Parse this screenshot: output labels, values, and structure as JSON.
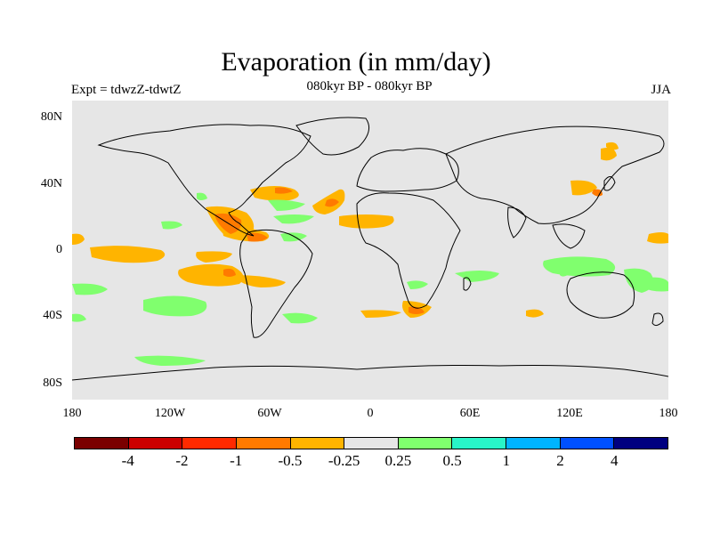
{
  "title": "Evaporation (in mm/day)",
  "subtitle_left": "Expt = tdwzZ-tdwtZ",
  "subtitle_center": "080kyr BP - 080kyr BP",
  "subtitle_right": "JJA",
  "lat_labels": [
    "80N",
    "40N",
    "0",
    "40S",
    "80S"
  ],
  "lon_labels": [
    "180",
    "120W",
    "60W",
    "0",
    "60E",
    "120E",
    "180"
  ],
  "colorbar": {
    "colors": [
      "#7a0000",
      "#cc0000",
      "#ff2a00",
      "#ff7a00",
      "#ffb400",
      "#e6e6e6",
      "#80ff6e",
      "#28f5c8",
      "#00b4ff",
      "#0050ff",
      "#000080"
    ],
    "labels": [
      "-4",
      "-2",
      "-1",
      "-0.5",
      "-0.25",
      "0.25",
      "0.5",
      "1",
      "2",
      "4"
    ]
  },
  "colors": {
    "background": "#e6e6e6",
    "negative_strong": "#ff7a00",
    "negative_weak": "#ffb400",
    "positive_weak": "#80ff6e"
  }
}
